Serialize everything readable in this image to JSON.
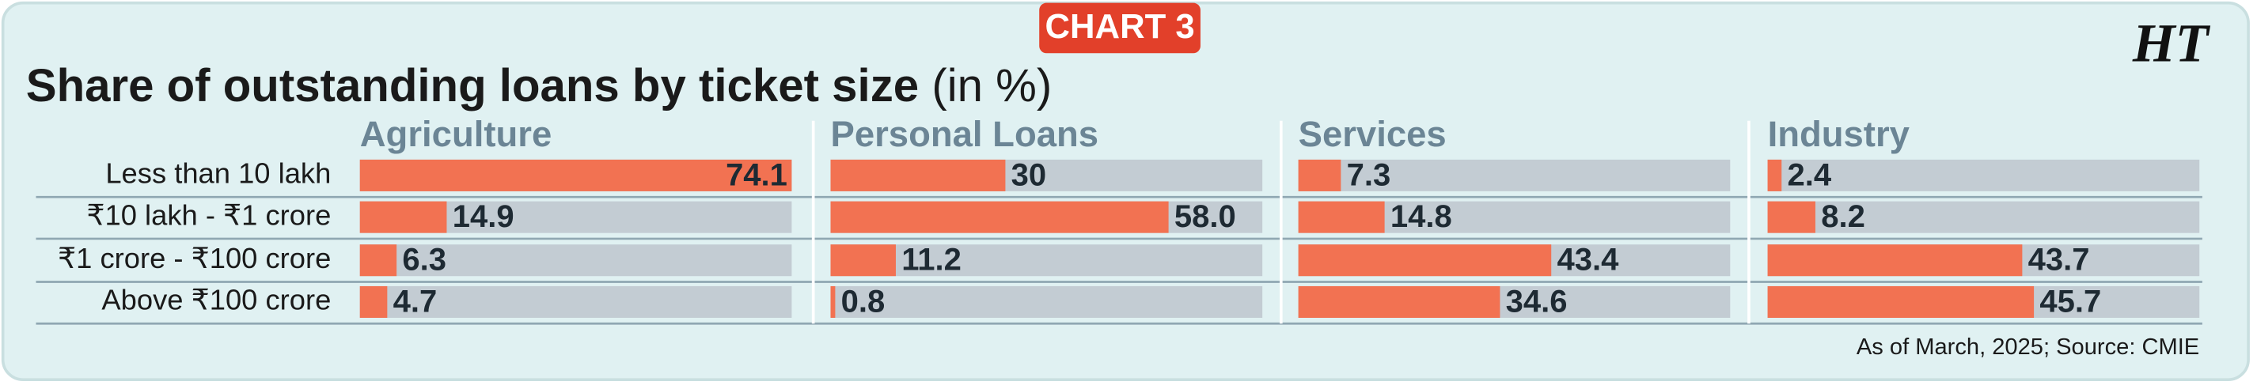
{
  "chart_data": {
    "type": "bar",
    "badge": "CHART 3",
    "title": "Share of outstanding loans by ticket size",
    "title_suffix": "(in %)",
    "logo": "HT",
    "footnote": "As of March, 2025;  Source: CMIE",
    "categories": [
      "Less than 10 lakh",
      "₹10 lakh - ₹1 crore",
      "₹1 crore - ₹100 crore",
      "Above ₹100 crore"
    ],
    "xlim": [
      0,
      74.1
    ],
    "track_color": "#c3ccd3",
    "series": [
      {
        "name": "Agriculture",
        "color": "#f27252",
        "values": [
          74.1,
          14.9,
          6.3,
          4.7
        ],
        "value_labels": [
          "74.1",
          "14.9",
          "6.3",
          "4.7"
        ]
      },
      {
        "name": "Personal Loans",
        "color": "#f27252",
        "values": [
          30,
          58.0,
          11.2,
          0.8
        ],
        "value_labels": [
          "30",
          "58.0",
          "11.2",
          "0.8"
        ]
      },
      {
        "name": "Services",
        "color": "#f27252",
        "values": [
          7.3,
          14.8,
          43.4,
          34.6
        ],
        "value_labels": [
          "7.3",
          "14.8",
          "43.4",
          "34.6"
        ]
      },
      {
        "name": "Industry",
        "color": "#f27252",
        "values": [
          2.4,
          8.2,
          43.7,
          45.7
        ],
        "value_labels": [
          "2.4",
          "8.2",
          "43.7",
          "45.7"
        ]
      }
    ]
  }
}
